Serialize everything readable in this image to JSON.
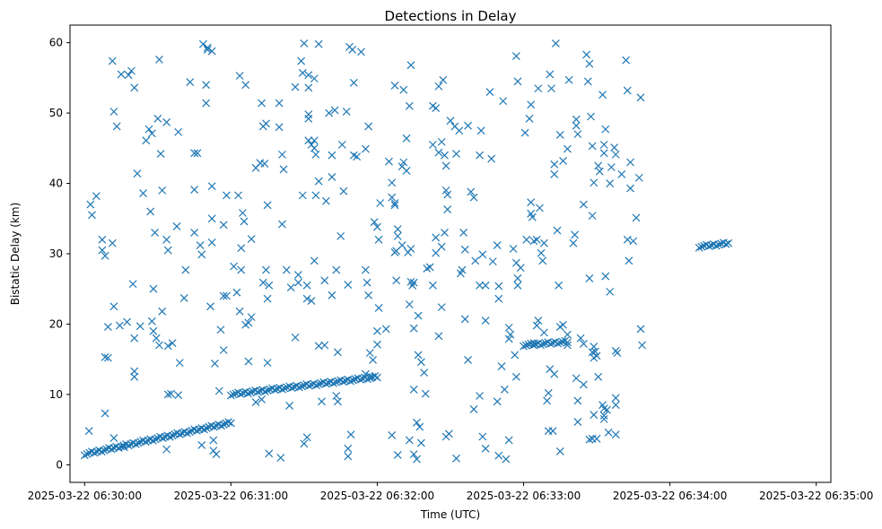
{
  "chart_data": {
    "type": "scatter",
    "title": "Detections in Delay",
    "xlabel": "Time (UTC)",
    "ylabel": "Bistatic Delay (km)",
    "marker": "x",
    "color": "#1f77b4",
    "grid": false,
    "x_ticks": [
      {
        "minute": 0,
        "label": "2025-03-22 06:30:00"
      },
      {
        "minute": 1,
        "label": "2025-03-22 06:31:00"
      },
      {
        "minute": 2,
        "label": "2025-03-22 06:32:00"
      },
      {
        "minute": 3,
        "label": "2025-03-22 06:33:00"
      },
      {
        "minute": 4,
        "label": "2025-03-22 06:34:00"
      },
      {
        "minute": 5,
        "label": "2025-03-22 06:35:00"
      }
    ],
    "y_ticks": [
      0,
      10,
      20,
      30,
      40,
      50,
      60
    ],
    "xlim_minutes": [
      -0.1,
      5.1
    ],
    "ylim": [
      -2.5,
      62.5
    ],
    "tracks": [
      {
        "x": [
          0.0,
          1.0
        ],
        "y": [
          1.5,
          6.0
        ]
      },
      {
        "x": [
          1.0,
          2.0
        ],
        "y": [
          10.0,
          12.5
        ]
      },
      {
        "x": [
          3.0,
          3.3
        ],
        "y": [
          17.0,
          17.5
        ]
      },
      {
        "x": [
          4.2,
          4.4
        ],
        "y": [
          31.0,
          31.5
        ]
      }
    ],
    "points": [
      [
        0.04,
        37.0
      ],
      [
        0.05,
        35.5
      ],
      [
        0.08,
        38.2
      ],
      [
        0.12,
        32.0
      ],
      [
        0.12,
        30.5
      ],
      [
        0.14,
        29.7
      ],
      [
        0.14,
        15.3
      ],
      [
        0.16,
        15.2
      ],
      [
        0.16,
        19.6
      ],
      [
        0.14,
        7.3
      ],
      [
        0.03,
        4.8
      ],
      [
        0.19,
        57.4
      ],
      [
        0.2,
        50.2
      ],
      [
        0.22,
        48.1
      ],
      [
        0.25,
        55.5
      ],
      [
        0.3,
        55.4
      ],
      [
        0.32,
        56.0
      ],
      [
        0.34,
        53.6
      ],
      [
        0.19,
        31.5
      ],
      [
        0.2,
        22.5
      ],
      [
        0.24,
        19.8
      ],
      [
        0.27,
        2.5
      ],
      [
        0.2,
        3.8
      ],
      [
        0.29,
        20.3
      ],
      [
        0.33,
        25.7
      ],
      [
        0.34,
        18.0
      ],
      [
        0.34,
        13.3
      ],
      [
        0.34,
        12.5
      ],
      [
        0.36,
        41.4
      ],
      [
        0.38,
        19.7
      ],
      [
        0.4,
        38.6
      ],
      [
        0.42,
        46.1
      ],
      [
        0.44,
        47.7
      ],
      [
        0.46,
        47.1
      ],
      [
        0.45,
        36.0
      ],
      [
        0.47,
        25.0
      ],
      [
        0.48,
        33.0
      ],
      [
        0.46,
        20.4
      ],
      [
        0.47,
        19.0
      ],
      [
        0.49,
        18.0
      ],
      [
        0.51,
        17.0
      ],
      [
        0.5,
        49.2
      ],
      [
        0.52,
        44.2
      ],
      [
        0.51,
        57.6
      ],
      [
        0.53,
        39.0
      ],
      [
        0.53,
        21.8
      ],
      [
        0.56,
        48.7
      ],
      [
        0.56,
        32.0
      ],
      [
        0.57,
        30.5
      ],
      [
        0.57,
        16.9
      ],
      [
        0.6,
        17.3
      ],
      [
        0.57,
        10.0
      ],
      [
        0.59,
        10.1
      ],
      [
        0.64,
        9.9
      ],
      [
        0.56,
        2.2
      ],
      [
        0.64,
        47.3
      ],
      [
        0.63,
        33.9
      ],
      [
        0.65,
        14.5
      ],
      [
        0.69,
        27.7
      ],
      [
        0.68,
        23.7
      ],
      [
        0.72,
        54.4
      ],
      [
        0.75,
        44.3
      ],
      [
        0.77,
        44.3
      ],
      [
        0.75,
        39.1
      ],
      [
        0.75,
        33.0
      ],
      [
        0.79,
        31.2
      ],
      [
        0.8,
        29.9
      ],
      [
        0.81,
        59.8
      ],
      [
        0.84,
        59.3
      ],
      [
        0.84,
        59.0
      ],
      [
        0.83,
        54.0
      ],
      [
        0.83,
        51.4
      ],
      [
        0.87,
        58.8
      ],
      [
        0.87,
        39.6
      ],
      [
        0.87,
        35.0
      ],
      [
        0.87,
        31.6
      ],
      [
        0.86,
        22.5
      ],
      [
        0.89,
        14.4
      ],
      [
        0.8,
        2.8
      ],
      [
        0.88,
        3.5
      ],
      [
        0.9,
        1.5
      ],
      [
        0.88,
        2.0
      ],
      [
        0.93,
        19.2
      ],
      [
        0.92,
        10.5
      ],
      [
        0.95,
        16.3
      ],
      [
        0.95,
        24.0
      ],
      [
        0.97,
        24.0
      ],
      [
        0.95,
        34.1
      ],
      [
        0.97,
        38.3
      ],
      [
        1.05,
        38.3
      ],
      [
        1.02,
        28.2
      ],
      [
        1.04,
        24.5
      ],
      [
        1.08,
        35.8
      ],
      [
        1.09,
        34.6
      ],
      [
        1.07,
        30.8
      ],
      [
        1.07,
        27.7
      ],
      [
        1.06,
        21.8
      ],
      [
        1.12,
        20.2
      ],
      [
        1.14,
        21.0
      ],
      [
        1.1,
        19.9
      ],
      [
        1.12,
        14.7
      ],
      [
        1.1,
        54.0
      ],
      [
        1.06,
        55.3
      ],
      [
        1.14,
        32.1
      ],
      [
        1.17,
        42.2
      ],
      [
        1.2,
        42.9
      ],
      [
        1.21,
        51.4
      ],
      [
        1.22,
        48.1
      ],
      [
        1.24,
        48.5
      ],
      [
        1.23,
        42.8
      ],
      [
        1.25,
        36.9
      ],
      [
        1.22,
        25.9
      ],
      [
        1.24,
        27.7
      ],
      [
        1.25,
        23.6
      ],
      [
        1.26,
        25.5
      ],
      [
        1.25,
        14.5
      ],
      [
        1.26,
        1.6
      ],
      [
        1.17,
        8.9
      ],
      [
        1.21,
        9.3
      ],
      [
        1.33,
        48.0
      ],
      [
        1.33,
        51.4
      ],
      [
        1.35,
        44.1
      ],
      [
        1.35,
        34.2
      ],
      [
        1.36,
        42.0
      ],
      [
        1.38,
        27.7
      ],
      [
        1.4,
        8.4
      ],
      [
        1.34,
        1.0
      ],
      [
        1.41,
        25.2
      ],
      [
        1.44,
        18.1
      ],
      [
        1.44,
        53.7
      ],
      [
        1.48,
        57.4
      ],
      [
        1.49,
        55.7
      ],
      [
        1.5,
        59.9
      ],
      [
        1.53,
        55.4
      ],
      [
        1.53,
        53.6
      ],
      [
        1.53,
        49.2
      ],
      [
        1.53,
        49.8
      ],
      [
        1.53,
        46.1
      ],
      [
        1.55,
        45.5
      ],
      [
        1.57,
        46.1
      ],
      [
        1.57,
        45.0
      ],
      [
        1.57,
        54.9
      ],
      [
        1.58,
        44.1
      ],
      [
        1.6,
        59.8
      ],
      [
        1.6,
        40.3
      ],
      [
        1.58,
        38.3
      ],
      [
        1.49,
        38.3
      ],
      [
        1.46,
        27.0
      ],
      [
        1.46,
        25.9
      ],
      [
        1.52,
        25.5
      ],
      [
        1.52,
        23.6
      ],
      [
        1.55,
        23.3
      ],
      [
        1.57,
        29.0
      ],
      [
        1.6,
        16.9
      ],
      [
        1.64,
        17.0
      ],
      [
        1.64,
        26.2
      ],
      [
        1.65,
        37.5
      ],
      [
        1.67,
        50.0
      ],
      [
        1.69,
        44.0
      ],
      [
        1.71,
        50.4
      ],
      [
        1.69,
        40.9
      ],
      [
        1.72,
        27.7
      ],
      [
        1.75,
        32.5
      ],
      [
        1.77,
        38.9
      ],
      [
        1.76,
        45.5
      ],
      [
        1.79,
        50.2
      ],
      [
        1.8,
        25.6
      ],
      [
        1.73,
        16.0
      ],
      [
        1.52,
        3.9
      ],
      [
        1.5,
        3.0
      ],
      [
        1.72,
        9.8
      ],
      [
        1.62,
        9.0
      ],
      [
        1.69,
        24.1
      ],
      [
        1.73,
        9.0
      ],
      [
        1.81,
        59.4
      ],
      [
        1.83,
        59.0
      ],
      [
        1.84,
        44.0
      ],
      [
        1.86,
        43.8
      ],
      [
        1.84,
        54.3
      ],
      [
        1.89,
        58.7
      ],
      [
        1.92,
        44.9
      ],
      [
        1.94,
        48.1
      ],
      [
        1.92,
        27.7
      ],
      [
        1.93,
        25.9
      ],
      [
        1.94,
        24.1
      ],
      [
        1.92,
        12.9
      ],
      [
        1.95,
        12.6
      ],
      [
        1.95,
        15.9
      ],
      [
        1.97,
        14.9
      ],
      [
        1.8,
        2.3
      ],
      [
        1.8,
        1.2
      ],
      [
        1.82,
        4.3
      ],
      [
        1.98,
        34.5
      ],
      [
        2.0,
        33.8
      ],
      [
        2.01,
        32.0
      ],
      [
        2.02,
        37.2
      ],
      [
        2.01,
        22.3
      ],
      [
        2.0,
        17.1
      ],
      [
        2.0,
        19.0
      ],
      [
        2.06,
        19.3
      ],
      [
        2.08,
        43.1
      ],
      [
        2.1,
        40.1
      ],
      [
        2.1,
        38.0
      ],
      [
        2.12,
        37.2
      ],
      [
        2.12,
        36.9
      ],
      [
        2.14,
        33.5
      ],
      [
        2.14,
        32.5
      ],
      [
        2.17,
        31.2
      ],
      [
        2.13,
        30.4
      ],
      [
        2.12,
        30.2
      ],
      [
        2.13,
        26.2
      ],
      [
        2.12,
        53.9
      ],
      [
        2.18,
        53.3
      ],
      [
        2.17,
        42.4
      ],
      [
        2.18,
        43.0
      ],
      [
        2.2,
        46.4
      ],
      [
        2.2,
        41.8
      ],
      [
        2.23,
        56.8
      ],
      [
        2.22,
        51.0
      ],
      [
        2.23,
        30.7
      ],
      [
        2.21,
        30.2
      ],
      [
        2.25,
        25.9
      ],
      [
        2.23,
        26.0
      ],
      [
        2.24,
        25.5
      ],
      [
        2.22,
        22.8
      ],
      [
        2.25,
        19.4
      ],
      [
        2.25,
        10.7
      ],
      [
        2.28,
        21.2
      ],
      [
        2.28,
        15.6
      ],
      [
        2.3,
        14.6
      ],
      [
        2.32,
        13.1
      ],
      [
        2.33,
        10.1
      ],
      [
        2.1,
        4.2
      ],
      [
        2.14,
        1.4
      ],
      [
        2.22,
        3.5
      ],
      [
        2.25,
        1.5
      ],
      [
        2.27,
        0.8
      ],
      [
        2.27,
        6.0
      ],
      [
        2.29,
        5.4
      ],
      [
        2.3,
        3.1
      ],
      [
        2.34,
        27.9
      ],
      [
        2.36,
        28.1
      ],
      [
        2.38,
        45.5
      ],
      [
        2.38,
        51.0
      ],
      [
        2.4,
        50.7
      ],
      [
        2.42,
        44.4
      ],
      [
        2.42,
        53.8
      ],
      [
        2.45,
        54.7
      ],
      [
        2.44,
        45.9
      ],
      [
        2.46,
        44.0
      ],
      [
        2.47,
        42.5
      ],
      [
        2.47,
        39.0
      ],
      [
        2.48,
        38.4
      ],
      [
        2.48,
        36.3
      ],
      [
        2.46,
        33.0
      ],
      [
        2.44,
        31.0
      ],
      [
        2.4,
        32.3
      ],
      [
        2.4,
        30.1
      ],
      [
        2.38,
        25.5
      ],
      [
        2.42,
        18.3
      ],
      [
        2.44,
        22.4
      ],
      [
        2.47,
        4.0
      ],
      [
        2.49,
        4.4
      ],
      [
        2.54,
        0.9
      ],
      [
        2.5,
        48.9
      ],
      [
        2.53,
        48.1
      ],
      [
        2.54,
        44.2
      ],
      [
        2.56,
        47.5
      ],
      [
        2.57,
        27.2
      ],
      [
        2.58,
        27.7
      ],
      [
        2.6,
        30.6
      ],
      [
        2.59,
        33.0
      ],
      [
        2.6,
        20.7
      ],
      [
        2.62,
        48.2
      ],
      [
        2.64,
        38.8
      ],
      [
        2.62,
        14.9
      ],
      [
        2.66,
        38.0
      ],
      [
        2.67,
        29.0
      ],
      [
        2.66,
        7.9
      ],
      [
        2.7,
        44.0
      ],
      [
        2.71,
        47.5
      ],
      [
        2.7,
        25.5
      ],
      [
        2.72,
        29.9
      ],
      [
        2.74,
        25.5
      ],
      [
        2.74,
        20.5
      ],
      [
        2.7,
        9.8
      ],
      [
        2.72,
        4.0
      ],
      [
        2.74,
        2.3
      ],
      [
        2.77,
        53.0
      ],
      [
        2.78,
        43.5
      ],
      [
        2.79,
        28.9
      ],
      [
        2.82,
        31.2
      ],
      [
        2.82,
        9.0
      ],
      [
        2.83,
        25.4
      ],
      [
        2.83,
        23.6
      ],
      [
        2.83,
        1.3
      ],
      [
        2.85,
        14.0
      ],
      [
        2.86,
        51.7
      ],
      [
        2.87,
        10.7
      ],
      [
        2.88,
        0.8
      ],
      [
        2.9,
        3.5
      ],
      [
        2.9,
        17.9
      ],
      [
        2.9,
        19.5
      ],
      [
        2.91,
        18.5
      ],
      [
        2.93,
        30.7
      ],
      [
        2.95,
        28.7
      ],
      [
        2.96,
        26.5
      ],
      [
        2.96,
        25.5
      ],
      [
        2.94,
        15.6
      ],
      [
        2.95,
        12.5
      ],
      [
        2.95,
        58.1
      ],
      [
        2.96,
        54.5
      ],
      [
        2.98,
        28.0
      ],
      [
        3.01,
        47.2
      ],
      [
        3.02,
        32.0
      ],
      [
        3.05,
        51.2
      ],
      [
        3.04,
        49.2
      ],
      [
        3.05,
        37.3
      ],
      [
        3.06,
        35.2
      ],
      [
        3.05,
        35.7
      ],
      [
        3.07,
        31.8
      ],
      [
        3.09,
        32.0
      ],
      [
        3.1,
        53.5
      ],
      [
        3.11,
        36.5
      ],
      [
        3.13,
        29.0
      ],
      [
        3.12,
        30.1
      ],
      [
        3.14,
        31.5
      ],
      [
        3.18,
        55.5
      ],
      [
        3.19,
        53.5
      ],
      [
        3.21,
        42.7
      ],
      [
        3.21,
        41.3
      ],
      [
        3.22,
        59.9
      ],
      [
        3.23,
        33.3
      ],
      [
        3.24,
        25.5
      ],
      [
        3.25,
        46.9
      ],
      [
        3.27,
        43.2
      ],
      [
        3.3,
        44.9
      ],
      [
        3.31,
        54.7
      ],
      [
        3.34,
        31.5
      ],
      [
        3.35,
        32.7
      ],
      [
        3.36,
        49.1
      ],
      [
        3.36,
        48.2
      ],
      [
        3.37,
        47.0
      ],
      [
        3.41,
        37.0
      ],
      [
        3.43,
        58.3
      ],
      [
        3.45,
        57.0
      ],
      [
        3.44,
        54.5
      ],
      [
        3.46,
        49.5
      ],
      [
        3.45,
        26.5
      ],
      [
        3.47,
        45.3
      ],
      [
        3.47,
        35.4
      ],
      [
        3.48,
        40.1
      ],
      [
        3.51,
        42.5
      ],
      [
        3.52,
        41.7
      ],
      [
        3.54,
        52.6
      ],
      [
        3.55,
        45.5
      ],
      [
        3.55,
        44.3
      ],
      [
        3.56,
        47.7
      ],
      [
        3.56,
        26.8
      ],
      [
        3.59,
        24.6
      ],
      [
        3.59,
        40.0
      ],
      [
        3.6,
        42.3
      ],
      [
        3.62,
        45.1
      ],
      [
        3.63,
        44.1
      ],
      [
        3.63,
        16.2
      ],
      [
        3.64,
        15.9
      ],
      [
        3.67,
        41.3
      ],
      [
        3.7,
        57.5
      ],
      [
        3.71,
        53.2
      ],
      [
        3.71,
        32.0
      ],
      [
        3.73,
        43.0
      ],
      [
        3.73,
        39.3
      ],
      [
        3.72,
        29.0
      ],
      [
        3.75,
        31.8
      ],
      [
        3.77,
        35.1
      ],
      [
        3.79,
        40.8
      ],
      [
        3.8,
        52.2
      ],
      [
        3.8,
        19.3
      ],
      [
        3.81,
        17.0
      ],
      [
        3.1,
        20.5
      ],
      [
        3.09,
        19.8
      ],
      [
        3.07,
        17.3
      ],
      [
        3.14,
        18.8
      ],
      [
        3.17,
        4.8
      ],
      [
        3.16,
        9.1
      ],
      [
        3.17,
        10.2
      ],
      [
        3.18,
        13.6
      ],
      [
        3.2,
        4.8
      ],
      [
        3.21,
        12.9
      ],
      [
        3.25,
        19.6
      ],
      [
        3.27,
        19.9
      ],
      [
        3.3,
        17.0
      ],
      [
        3.3,
        18.5
      ],
      [
        3.25,
        1.9
      ],
      [
        3.36,
        12.3
      ],
      [
        3.37,
        9.1
      ],
      [
        3.37,
        6.1
      ],
      [
        3.39,
        18.0
      ],
      [
        3.41,
        17.2
      ],
      [
        3.41,
        11.4
      ],
      [
        3.45,
        3.6
      ],
      [
        3.47,
        3.7
      ],
      [
        3.48,
        16.8
      ],
      [
        3.49,
        16.1
      ],
      [
        3.48,
        15.2
      ],
      [
        3.48,
        7.1
      ],
      [
        3.5,
        3.7
      ],
      [
        3.51,
        12.5
      ],
      [
        3.54,
        8.5
      ],
      [
        3.55,
        7.0
      ],
      [
        3.55,
        6.5
      ],
      [
        3.55,
        8.0
      ],
      [
        3.57,
        7.8
      ],
      [
        3.58,
        4.6
      ],
      [
        3.63,
        9.5
      ],
      [
        3.63,
        8.5
      ],
      [
        3.63,
        4.3
      ],
      [
        3.47,
        16.0
      ],
      [
        3.5,
        15.5
      ]
    ]
  }
}
